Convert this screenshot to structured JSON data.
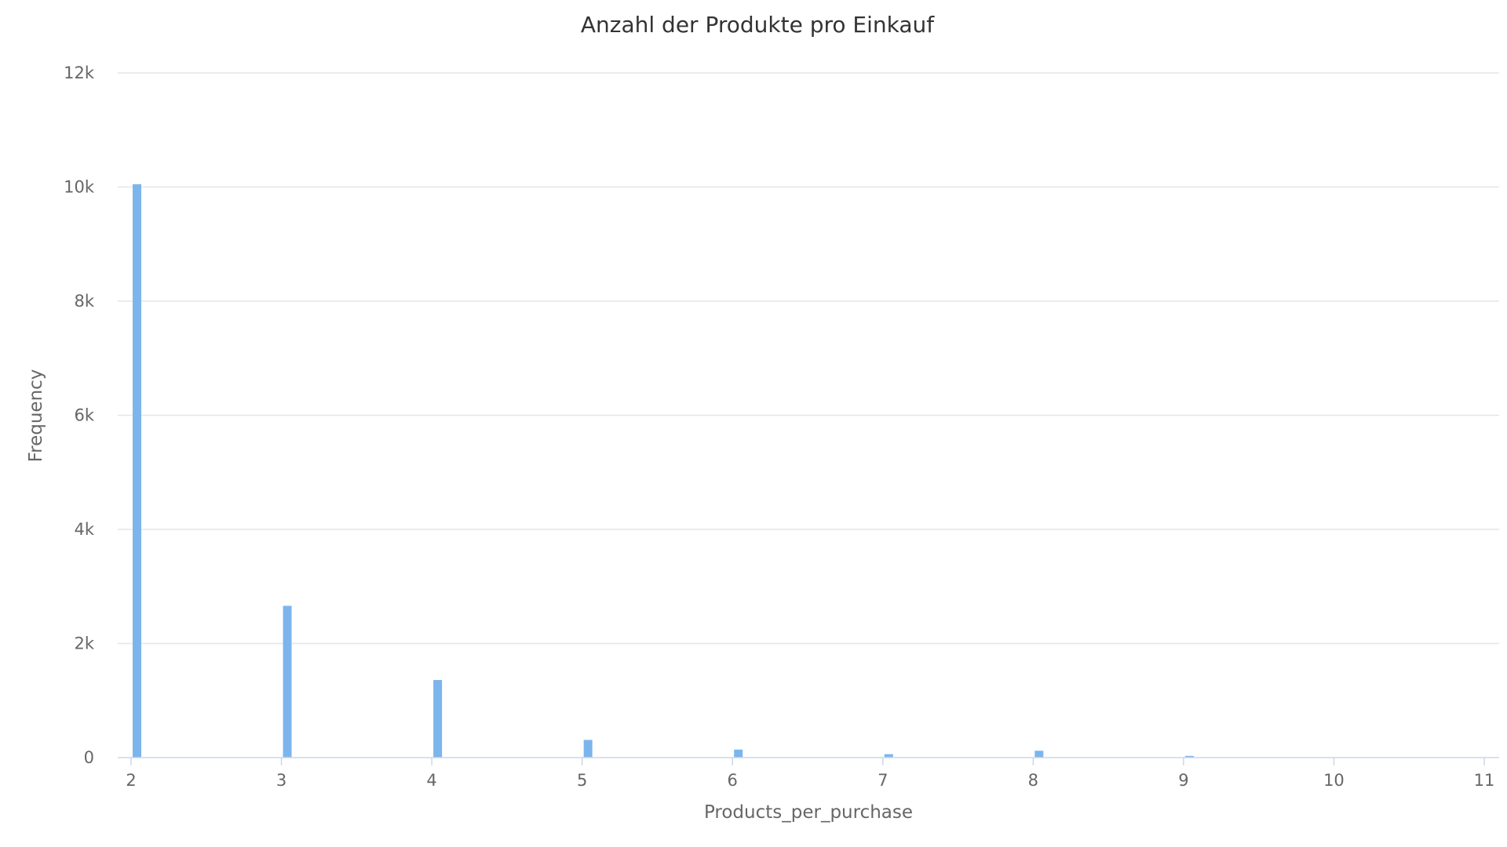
{
  "chart_data": {
    "type": "bar",
    "title": "Anzahl der Produkte pro Einkauf",
    "xlabel": "Products_per_purchase",
    "ylabel": "Frequency",
    "x": [
      2,
      3,
      4,
      5,
      6,
      7,
      8,
      9,
      10
    ],
    "values": [
      10050,
      2660,
      1360,
      310,
      140,
      60,
      120,
      30,
      0
    ],
    "xlim": [
      2,
      11
    ],
    "ylim": [
      0,
      12000
    ],
    "x_ticks": [
      2,
      3,
      4,
      5,
      6,
      7,
      8,
      9,
      10,
      11
    ],
    "y_ticks": [
      0,
      2000,
      4000,
      6000,
      8000,
      10000,
      12000
    ],
    "y_tick_labels": [
      "0",
      "2k",
      "4k",
      "6k",
      "8k",
      "10k",
      "12k"
    ],
    "grid": true,
    "legend": "none",
    "bar_color": "#7cb5ec"
  }
}
